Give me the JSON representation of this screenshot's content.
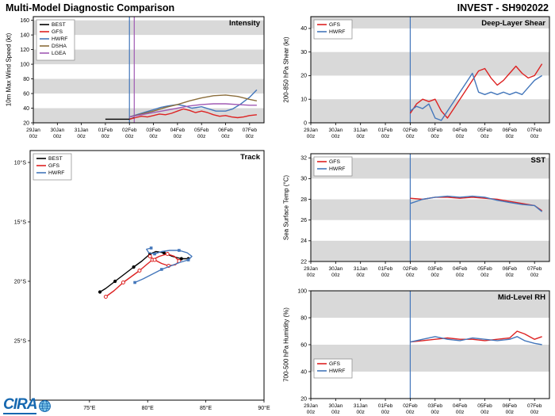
{
  "header": {
    "left_title": "Multi-Model Diagnostic Comparison",
    "right_title": "INVEST - SH902022"
  },
  "logo": {
    "text": "CIRA"
  },
  "colors": {
    "band": "#d9d9d9",
    "axis": "#000000",
    "background": "#ffffff",
    "best": "#000000",
    "gfs": "#dd2222",
    "hwrf": "#4477bb",
    "dsha": "#8a6d3b",
    "lgea": "#a05ab4"
  },
  "time_axis": {
    "domain": [
      0,
      9.6
    ],
    "tick_labels": [
      [
        "29Jan",
        "00z"
      ],
      [
        "30Jan",
        "00z"
      ],
      [
        "31Jan",
        "00z"
      ],
      [
        "01Feb",
        "00z"
      ],
      [
        "02Feb",
        "00z"
      ],
      [
        "03Feb",
        "00z"
      ],
      [
        "04Feb",
        "00z"
      ],
      [
        "05Feb",
        "00z"
      ],
      [
        "06Feb",
        "00z"
      ],
      [
        "07Feb",
        "00z"
      ]
    ]
  },
  "chart_data": [
    {
      "id": "intensity",
      "type": "line",
      "title": "Intensity",
      "ylabel": "10m Max Wind Speed (kt)",
      "xlim": [
        0,
        9.6
      ],
      "ylim": [
        20,
        165
      ],
      "yticks": [
        20,
        40,
        60,
        80,
        100,
        120,
        140,
        160
      ],
      "bands": [
        [
          20,
          40
        ],
        [
          60,
          80
        ],
        [
          100,
          120
        ],
        [
          140,
          160
        ]
      ],
      "legend_pos": "tl",
      "now_lines": [
        {
          "x": 4.0,
          "color": "#4477bb"
        },
        {
          "x": 4.2,
          "color": "#a05ab4"
        }
      ],
      "series": [
        {
          "name": "BEST",
          "color": "#000000",
          "x": [
            3.0,
            3.25,
            3.5,
            3.75,
            4.0,
            4.2
          ],
          "y": [
            25,
            25,
            25,
            25,
            25,
            27
          ]
        },
        {
          "name": "GFS",
          "color": "#dd2222",
          "x": [
            4.0,
            4.25,
            4.5,
            4.75,
            5.0,
            5.25,
            5.5,
            5.75,
            6.0,
            6.25,
            6.5,
            6.75,
            7.0,
            7.25,
            7.5,
            7.75,
            8.0,
            8.25,
            8.5,
            8.75,
            9.0,
            9.3
          ],
          "y": [
            25,
            27,
            29,
            28,
            30,
            32,
            31,
            33,
            36,
            39,
            37,
            34,
            36,
            34,
            31,
            29,
            30,
            28,
            27,
            28,
            30,
            31
          ]
        },
        {
          "name": "HWRF",
          "color": "#4477bb",
          "x": [
            4.0,
            4.3,
            4.6,
            5.0,
            5.3,
            5.6,
            6.0,
            6.3,
            6.6,
            7.0,
            7.3,
            7.6,
            8.0,
            8.3,
            8.6,
            9.0,
            9.3
          ],
          "y": [
            28,
            31,
            34,
            38,
            41,
            43,
            45,
            43,
            40,
            42,
            39,
            36,
            36,
            39,
            45,
            55,
            65
          ]
        },
        {
          "name": "DSHA",
          "color": "#8a6d3b",
          "x": [
            4.0,
            4.5,
            5.0,
            5.5,
            6.0,
            6.5,
            7.0,
            7.5,
            8.0,
            8.5,
            9.0,
            9.3
          ],
          "y": [
            28,
            32,
            36,
            41,
            45,
            50,
            54,
            57,
            58,
            56,
            52,
            50
          ]
        },
        {
          "name": "LGEA",
          "color": "#a05ab4",
          "x": [
            4.0,
            4.5,
            5.0,
            5.5,
            6.0,
            6.5,
            7.0,
            7.5,
            8.0,
            8.5,
            9.0,
            9.3
          ],
          "y": [
            28,
            31,
            34,
            37,
            40,
            43,
            45,
            46,
            46,
            45,
            44,
            44
          ]
        }
      ]
    },
    {
      "id": "shear",
      "type": "line",
      "title": "Deep-Layer Shear",
      "ylabel": "200-850 hPa Shear (kt)",
      "xlim": [
        0,
        9.6
      ],
      "ylim": [
        0,
        45
      ],
      "yticks": [
        0,
        10,
        20,
        30,
        40
      ],
      "bands": [
        [
          0,
          10
        ],
        [
          20,
          30
        ],
        [
          40,
          45
        ]
      ],
      "legend_pos": "tl",
      "now_lines": [
        {
          "x": 4.0,
          "color": "#4477bb"
        }
      ],
      "series": [
        {
          "name": "GFS",
          "color": "#dd2222",
          "x": [
            4.0,
            4.25,
            4.5,
            4.75,
            5.0,
            5.25,
            5.5,
            5.75,
            6.0,
            6.25,
            6.5,
            6.75,
            7.0,
            7.25,
            7.5,
            7.75,
            8.0,
            8.25,
            8.5,
            8.75,
            9.0,
            9.3
          ],
          "y": [
            4,
            8,
            10,
            9,
            10,
            5,
            2,
            6,
            10,
            14,
            18,
            22,
            23,
            19,
            16,
            18,
            21,
            24,
            21,
            19,
            20,
            25
          ]
        },
        {
          "name": "HWRF",
          "color": "#4477bb",
          "x": [
            4.0,
            4.25,
            4.5,
            4.75,
            5.0,
            5.25,
            5.5,
            5.75,
            6.0,
            6.25,
            6.5,
            6.75,
            7.0,
            7.25,
            7.5,
            7.75,
            8.0,
            8.25,
            8.5,
            8.75,
            9.0,
            9.3
          ],
          "y": [
            5,
            7,
            6,
            8,
            2,
            1,
            5,
            9,
            13,
            17,
            21,
            13,
            12,
            13,
            12,
            13,
            12,
            13,
            12,
            15,
            18,
            20
          ]
        }
      ]
    },
    {
      "id": "sst",
      "type": "line",
      "title": "SST",
      "ylabel": "Sea Surface Temp (°C)",
      "xlim": [
        0,
        9.6
      ],
      "ylim": [
        22,
        32.4
      ],
      "yticks": [
        22,
        24,
        26,
        28,
        30,
        32
      ],
      "bands": [
        [
          22,
          24
        ],
        [
          26,
          28
        ],
        [
          30,
          32
        ]
      ],
      "legend_pos": "tl",
      "now_lines": [
        {
          "x": 4.0,
          "color": "#4477bb"
        }
      ],
      "series": [
        {
          "name": "GFS",
          "color": "#dd2222",
          "x": [
            4.0,
            4.5,
            5.0,
            5.5,
            6.0,
            6.5,
            7.0,
            7.5,
            8.0,
            8.5,
            9.0,
            9.3
          ],
          "y": [
            28.1,
            28.0,
            28.2,
            28.2,
            28.1,
            28.2,
            28.1,
            28.0,
            27.8,
            27.6,
            27.4,
            26.9
          ]
        },
        {
          "name": "HWRF",
          "color": "#4477bb",
          "x": [
            4.0,
            4.5,
            5.0,
            5.5,
            6.0,
            6.5,
            7.0,
            7.5,
            8.0,
            8.5,
            9.0,
            9.3
          ],
          "y": [
            27.6,
            28.0,
            28.2,
            28.3,
            28.2,
            28.3,
            28.2,
            27.9,
            27.7,
            27.5,
            27.4,
            26.8
          ]
        }
      ]
    },
    {
      "id": "rh",
      "type": "line",
      "title": "Mid-Level RH",
      "ylabel": "700-500 hPa Humidity (%)",
      "xlim": [
        0,
        9.6
      ],
      "ylim": [
        20,
        100
      ],
      "yticks": [
        20,
        40,
        60,
        80,
        100
      ],
      "bands": [
        [
          40,
          60
        ],
        [
          80,
          100
        ]
      ],
      "legend_pos": "bl",
      "now_lines": [
        {
          "x": 4.0,
          "color": "#4477bb"
        }
      ],
      "series": [
        {
          "name": "GFS",
          "color": "#dd2222",
          "x": [
            4.0,
            4.5,
            5.0,
            5.5,
            6.0,
            6.5,
            7.0,
            7.5,
            8.0,
            8.3,
            8.6,
            9.0,
            9.3
          ],
          "y": [
            62,
            63,
            64,
            65,
            64,
            64,
            63,
            64,
            65,
            70,
            68,
            64,
            66
          ]
        },
        {
          "name": "HWRF",
          "color": "#4477bb",
          "x": [
            4.0,
            4.5,
            5.0,
            5.5,
            6.0,
            6.5,
            7.0,
            7.5,
            8.0,
            8.3,
            8.6,
            9.0,
            9.3
          ],
          "y": [
            62,
            64,
            66,
            64,
            63,
            65,
            64,
            63,
            64,
            66,
            63,
            61,
            60
          ]
        }
      ]
    },
    {
      "id": "track",
      "type": "track",
      "title": "Track",
      "ylabel": "",
      "xlim": [
        69.9,
        90.0
      ],
      "ylim": [
        -30.0,
        -9.0
      ],
      "xticks": [
        {
          "v": 75,
          "label": "75°E"
        },
        {
          "v": 80,
          "label": "80°E"
        },
        {
          "v": 85,
          "label": "85°E"
        },
        {
          "v": 90,
          "label": "90°E"
        }
      ],
      "yticks": [
        {
          "v": -10,
          "label": "10°S"
        },
        {
          "v": -15,
          "label": "15°S"
        },
        {
          "v": -20,
          "label": "20°S"
        },
        {
          "v": -25,
          "label": "25°S"
        }
      ],
      "bands": [],
      "legend_pos": "tl",
      "series": [
        {
          "name": "BEST",
          "color": "#000000",
          "marker": "filled-circle",
          "marker_every": 2,
          "x": [
            75.9,
            76.4,
            77.2,
            78.0,
            78.8,
            79.5,
            80.2,
            80.7,
            81.4,
            82.1,
            82.9,
            83.5
          ],
          "y": [
            -20.9,
            -20.6,
            -20.0,
            -19.4,
            -18.8,
            -18.3,
            -17.7,
            -17.5,
            -17.6,
            -17.9,
            -18.1,
            -18.1
          ]
        },
        {
          "name": "GFS",
          "color": "#dd2222",
          "marker": "open-circle",
          "marker_every": 2,
          "x": [
            76.4,
            77.1,
            77.9,
            78.6,
            79.3,
            79.9,
            80.4,
            81.0,
            81.7,
            82.3,
            82.7,
            82.4,
            81.8,
            81.2,
            80.6,
            80.2
          ],
          "y": [
            -21.3,
            -20.8,
            -20.1,
            -19.6,
            -19.1,
            -18.6,
            -18.2,
            -17.9,
            -17.7,
            -17.9,
            -18.3,
            -18.6,
            -18.7,
            -18.5,
            -18.2,
            -17.9
          ]
        },
        {
          "name": "HWRF",
          "color": "#4477bb",
          "marker": "filled-square",
          "marker_every": 3,
          "x": [
            78.9,
            79.6,
            80.4,
            81.2,
            82.0,
            82.8,
            83.5,
            83.8,
            83.4,
            82.7,
            81.9,
            81.2,
            80.6,
            80.1,
            79.9,
            80.3
          ],
          "y": [
            -20.1,
            -19.8,
            -19.4,
            -19.0,
            -18.7,
            -18.4,
            -18.2,
            -17.9,
            -17.6,
            -17.4,
            -17.4,
            -17.5,
            -17.7,
            -17.6,
            -17.3,
            -17.2
          ]
        }
      ]
    }
  ]
}
